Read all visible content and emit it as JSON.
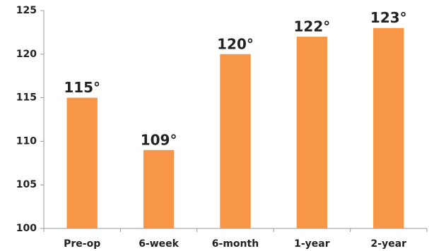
{
  "chart_data": {
    "type": "bar",
    "categories": [
      "Pre-op",
      "6-week",
      "6-month",
      "1-year",
      "2-year"
    ],
    "values": [
      115,
      109,
      120,
      122,
      123
    ],
    "value_labels": [
      "115°",
      "109°",
      "120°",
      "122°",
      "123°"
    ],
    "color": "#f79646",
    "ylim": [
      100,
      125
    ],
    "yticks": [
      100,
      105,
      110,
      115,
      120,
      125
    ],
    "grid": false
  }
}
